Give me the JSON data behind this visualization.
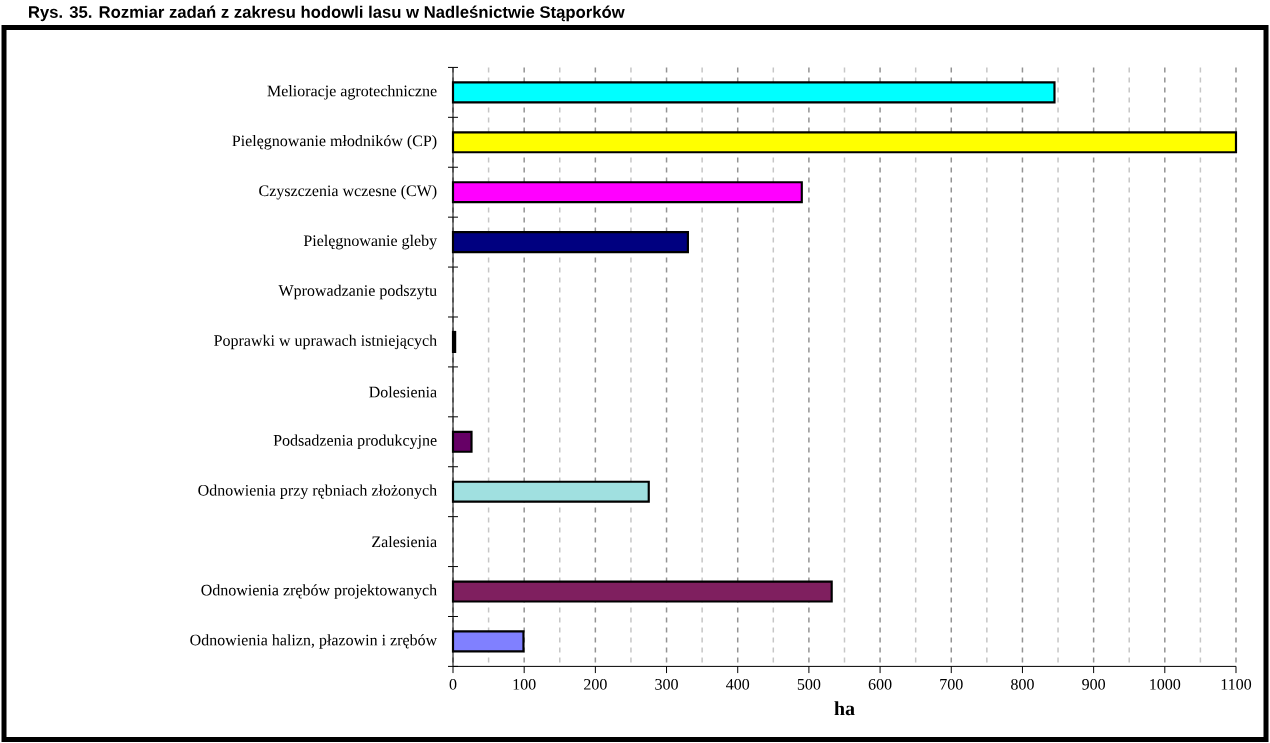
{
  "chart_data": {
    "type": "bar",
    "orientation": "horizontal",
    "title": "Rys. 35. Rozmiar zadań z zakresu hodowli lasu w Nadleśnictwie Stąporków",
    "xlabel": "ha",
    "categories": [
      "Melioracje agrotechniczne",
      "Pielęgnowanie młodników (CP)",
      "Czyszczenia wczesne (CW)",
      "Pielęgnowanie gleby",
      "Wprowadzanie podszytu",
      "Poprawki w uprawach istniejących",
      "Dolesienia",
      "Podsadzenia produkcyjne",
      "Odnowienia przy rębniach złożonych",
      "Zalesienia",
      "Odnowienia zrębów projektowanych",
      "Odnowienia halizn, płazowin i zrębów"
    ],
    "values": [
      845,
      1100,
      490,
      330,
      0,
      3,
      0,
      26,
      275,
      0,
      532,
      99
    ],
    "colors": [
      "#00ffff",
      "#ffff00",
      "#ff00ff",
      "#000080",
      "#ffffff",
      "#000000",
      "#ffffff",
      "#660066",
      "#a0e0e0",
      "#ffffff",
      "#7f1f5f",
      "#8080ff"
    ],
    "xlim": [
      0,
      1100
    ],
    "xticks": [
      0,
      100,
      200,
      300,
      400,
      500,
      600,
      700,
      800,
      900,
      1000,
      1100
    ],
    "grid": "x"
  }
}
